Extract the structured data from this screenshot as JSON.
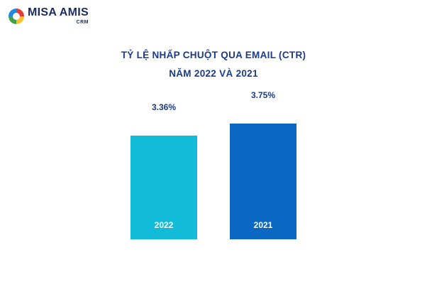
{
  "logo": {
    "name": "MISA AMIS",
    "sub": "CRM"
  },
  "chart_data": {
    "type": "bar",
    "title_line1": "TỶ LỆ NHẤP CHUỘT QUA EMAIL (CTR)",
    "title_line2": "NĂM 2022 VÀ 2021",
    "categories": [
      "2022",
      "2021"
    ],
    "values": [
      3.36,
      3.75
    ],
    "value_labels": [
      "3.36%",
      "3.75%"
    ],
    "colors": [
      "#12bcd8",
      "#0a68c2"
    ],
    "label_color": "#1a3a8a",
    "ylim": [
      0,
      3.75
    ],
    "grid": false,
    "xlabel": "",
    "ylabel": ""
  }
}
